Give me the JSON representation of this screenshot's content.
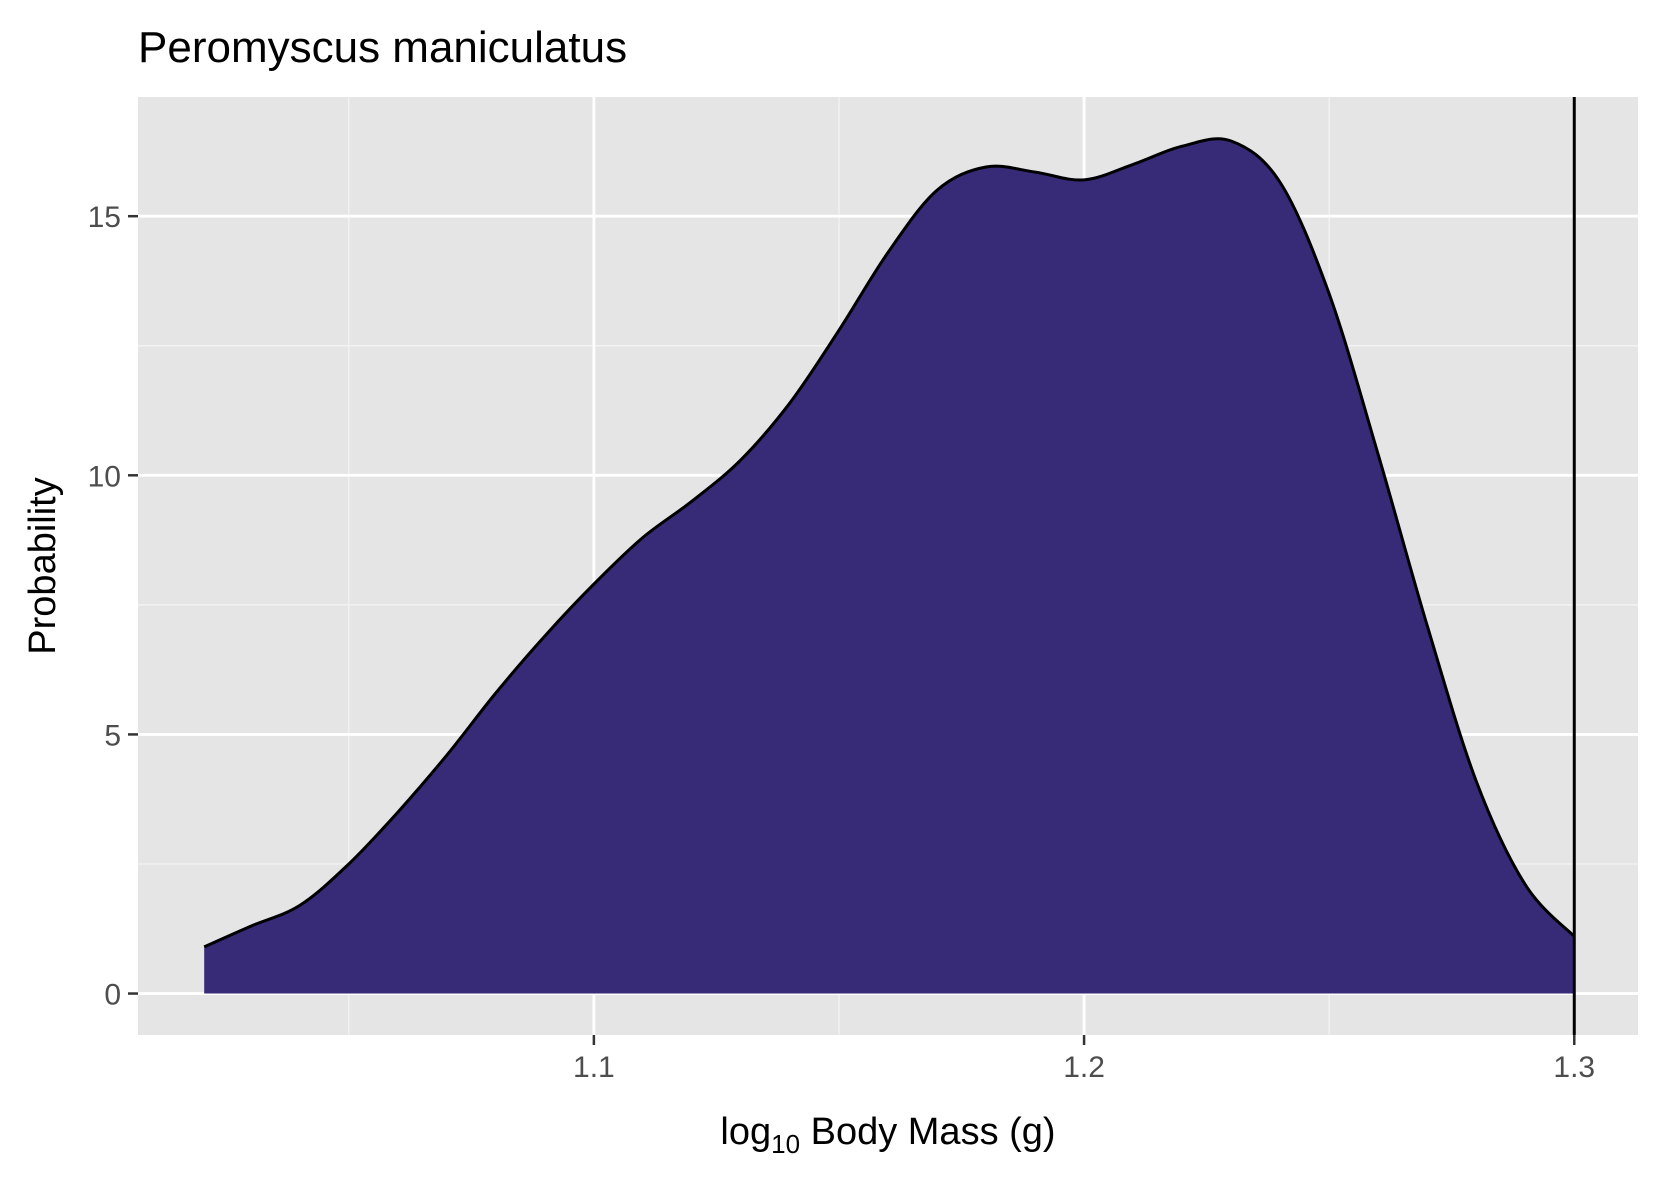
{
  "chart_data": {
    "type": "area",
    "title": "Peromyscus maniculatus",
    "xlabel": {
      "prefix": "log",
      "subscript": "10",
      "suffix": " Body Mass (g)"
    },
    "ylabel": "Probability",
    "xlim": [
      1.007,
      1.313
    ],
    "ylim": [
      -0.8,
      17.3
    ],
    "x_ticks": [
      1.1,
      1.2,
      1.3
    ],
    "x_tick_labels": [
      "1.1",
      "1.2",
      "1.3"
    ],
    "x_minor_ticks": [
      1.05,
      1.15,
      1.25
    ],
    "y_ticks": [
      0,
      5,
      10,
      15
    ],
    "y_tick_labels": [
      "0",
      "5",
      "10",
      "15"
    ],
    "y_minor_ticks": [
      2.5,
      7.5,
      12.5
    ],
    "grid": true,
    "legend": "none",
    "series": [
      {
        "fill": "#372b77",
        "stroke": "#000000",
        "x": [
          1.0205,
          1.03,
          1.04,
          1.05,
          1.06,
          1.07,
          1.08,
          1.09,
          1.1,
          1.11,
          1.12,
          1.13,
          1.14,
          1.15,
          1.16,
          1.17,
          1.18,
          1.19,
          1.2,
          1.21,
          1.22,
          1.23,
          1.24,
          1.25,
          1.26,
          1.27,
          1.28,
          1.29,
          1.3
        ],
        "y": [
          0.9,
          1.3,
          1.7,
          2.5,
          3.5,
          4.6,
          5.8,
          6.9,
          7.9,
          8.8,
          9.5,
          10.3,
          11.4,
          12.8,
          14.3,
          15.5,
          15.95,
          15.85,
          15.7,
          16.0,
          16.35,
          16.45,
          15.65,
          13.5,
          10.4,
          7.1,
          4.1,
          2.1,
          1.1
        ]
      }
    ],
    "vline": {
      "x": 1.3,
      "color": "#000000"
    }
  },
  "colors": {
    "panel_background": "#e5e5e5",
    "grid_major": "#ffffff",
    "grid_minor": "#f2f2f2",
    "tick_text": "#4d4d4d",
    "tick_mark": "#333333",
    "fill": "#372b77"
  }
}
